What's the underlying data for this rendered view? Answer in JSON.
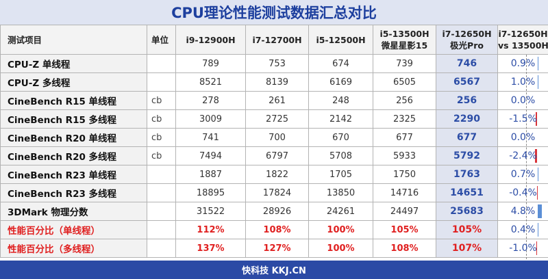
{
  "title": "CPU理论性能测试数据汇总对比",
  "footer": "快科技 KKJ.CN",
  "header": {
    "item": "测试项目",
    "unit": "单位",
    "cols": [
      {
        "line1": "i9-12900H",
        "line2": ""
      },
      {
        "line1": "i7-12700H",
        "line2": ""
      },
      {
        "line1": "i5-12500H",
        "line2": ""
      },
      {
        "line1": "i5-13500H",
        "line2": "微星星影15"
      },
      {
        "line1": "i7-12650H",
        "line2": "极光Pro"
      },
      {
        "line1": "i7-12650H",
        "line2": "vs 13500H"
      }
    ]
  },
  "colors": {
    "title_text": "#1d3f9e",
    "highlight_col": "#2c4da6",
    "percent_rows": "#e02020",
    "pos_bar": "#5b8fd6",
    "neg_bar": "#d9343a",
    "footer_bg": "#2b4aa5"
  },
  "rows": [
    {
      "item": "CPU-Z 单线程",
      "unit": "",
      "v": [
        "789",
        "753",
        "674",
        "739",
        "746"
      ],
      "diff": "0.9%",
      "diff_num": 0.9,
      "kind": "data"
    },
    {
      "item": "CPU-Z 多线程",
      "unit": "",
      "v": [
        "8521",
        "8139",
        "6169",
        "6505",
        "6567"
      ],
      "diff": "1.0%",
      "diff_num": 1.0,
      "kind": "data"
    },
    {
      "item": "CineBench R15 单线程",
      "unit": "cb",
      "v": [
        "278",
        "261",
        "248",
        "256",
        "256"
      ],
      "diff": "0.0%",
      "diff_num": 0.0,
      "kind": "data"
    },
    {
      "item": "CineBench R15 多线程",
      "unit": "cb",
      "v": [
        "3009",
        "2725",
        "2142",
        "2325",
        "2290"
      ],
      "diff": "-1.5%",
      "diff_num": -1.5,
      "kind": "data"
    },
    {
      "item": "CineBench R20 单线程",
      "unit": "cb",
      "v": [
        "741",
        "700",
        "670",
        "677",
        "677"
      ],
      "diff": "0.0%",
      "diff_num": 0.0,
      "kind": "data"
    },
    {
      "item": "CineBench R20 多线程",
      "unit": "cb",
      "v": [
        "7494",
        "6797",
        "5708",
        "5933",
        "5792"
      ],
      "diff": "-2.4%",
      "diff_num": -2.4,
      "kind": "data"
    },
    {
      "item": "CineBench R23 单线程",
      "unit": "",
      "v": [
        "1887",
        "1822",
        "1705",
        "1750",
        "1763"
      ],
      "diff": "0.7%",
      "diff_num": 0.7,
      "kind": "data"
    },
    {
      "item": "CineBench R23 多线程",
      "unit": "",
      "v": [
        "18895",
        "17824",
        "13850",
        "14716",
        "14651"
      ],
      "diff": "-0.4%",
      "diff_num": -0.4,
      "kind": "data"
    },
    {
      "item": "3DMark 物理分数",
      "unit": "",
      "v": [
        "31522",
        "28926",
        "24261",
        "24497",
        "25683"
      ],
      "diff": "4.8%",
      "diff_num": 4.8,
      "kind": "data"
    },
    {
      "item": "性能百分比（单线程）",
      "unit": "",
      "v": [
        "112%",
        "108%",
        "100%",
        "105%",
        "105%"
      ],
      "diff": "0.4%",
      "diff_num": 0.4,
      "kind": "pct"
    },
    {
      "item": "性能百分比（多线程）",
      "unit": "",
      "v": [
        "137%",
        "127%",
        "100%",
        "108%",
        "107%"
      ],
      "diff": "-1.0%",
      "diff_num": -1.0,
      "kind": "pct"
    }
  ]
}
